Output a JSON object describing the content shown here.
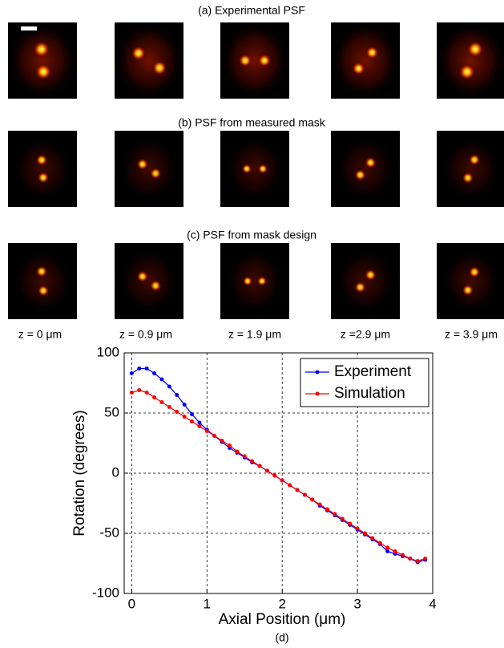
{
  "panels": [
    {
      "title": "(a) Experimental PSF"
    },
    {
      "title": "(b) PSF from measured mask"
    },
    {
      "title": "(c) PSF from mask design"
    }
  ],
  "z_labels": [
    "z = 0 μm",
    "z = 0.9 μm",
    "z = 1.9 μm",
    "z =2.9 μm",
    "z = 3.9 μm"
  ],
  "chart_data": {
    "type": "line",
    "caption": "(d)",
    "x_label": "Axial Position (μm)",
    "y_label": "Rotation (degrees)",
    "xlim": [
      -0.1,
      4
    ],
    "ylim": [
      -100,
      100
    ],
    "xticks": [
      0,
      1,
      2,
      3,
      4
    ],
    "yticks": [
      -100,
      -50,
      0,
      50,
      100
    ],
    "grid": true,
    "legend": "upper right",
    "x": [
      0,
      0.1,
      0.2,
      0.3,
      0.4,
      0.5,
      0.6,
      0.7,
      0.8,
      0.9,
      1.0,
      1.1,
      1.2,
      1.3,
      1.4,
      1.5,
      1.6,
      1.7,
      1.8,
      1.9,
      2.0,
      2.1,
      2.2,
      2.3,
      2.4,
      2.5,
      2.6,
      2.7,
      2.8,
      2.9,
      3.0,
      3.1,
      3.2,
      3.3,
      3.4,
      3.5,
      3.6,
      3.7,
      3.8,
      3.9
    ],
    "series": [
      {
        "name": "Experiment",
        "color": "#0000ff",
        "values": [
          83,
          87,
          87,
          83,
          78,
          72,
          65,
          57,
          49,
          42,
          36,
          31,
          26,
          21,
          17,
          13,
          9,
          6,
          2,
          -2,
          -6,
          -10,
          -14,
          -18,
          -22,
          -27,
          -31,
          -35,
          -39,
          -43,
          -47,
          -51,
          -55,
          -59,
          -65,
          -67,
          -69,
          -71,
          -74,
          -72
        ]
      },
      {
        "name": "Simulation",
        "color": "#ff0000",
        "values": [
          67,
          69,
          67,
          63,
          59,
          55,
          51,
          47,
          43,
          39,
          35,
          31,
          27,
          23,
          18,
          14,
          10,
          6,
          2,
          -2,
          -6,
          -10,
          -14,
          -18,
          -22,
          -26,
          -30,
          -34,
          -38,
          -42,
          -46,
          -50,
          -54,
          -58,
          -62,
          -65,
          -68,
          -71,
          -73,
          -71
        ]
      }
    ]
  }
}
